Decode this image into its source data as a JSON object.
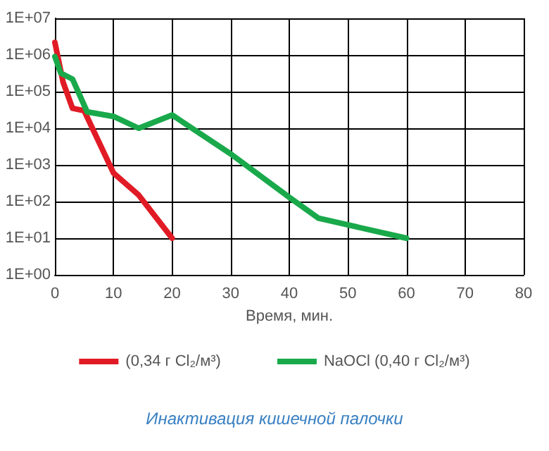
{
  "chart_data": {
    "type": "line",
    "title": "Инактивация кишечной палочки",
    "xlabel": "Время, мин.",
    "series": [
      {
        "name": "(0,34 г Cl₂/м³)",
        "color": "#e11b25",
        "x": [
          0,
          1.4,
          3,
          5,
          10,
          14.3,
          20
        ],
        "values": [
          2200000,
          180000,
          35000,
          30000,
          600,
          150,
          10
        ]
      },
      {
        "name": "NaOCl (0,40 г Cl₂/м³)",
        "color": "#19a94b",
        "x": [
          0,
          1,
          3,
          5.5,
          10,
          14.3,
          20,
          30,
          40,
          45,
          60
        ],
        "values": [
          900000,
          320000,
          220000,
          28000,
          21000,
          10000,
          23000,
          2000,
          130,
          35,
          10
        ]
      }
    ],
    "xlim": [
      0,
      80
    ],
    "xticks": [
      0,
      10,
      20,
      30,
      40,
      50,
      60,
      70,
      80
    ],
    "ylim": [
      1,
      10000000
    ],
    "yticks": [
      {
        "value": 1,
        "label": "1E+00"
      },
      {
        "value": 10,
        "label": "1E+01"
      },
      {
        "value": 100,
        "label": "1E+02"
      },
      {
        "value": 1000,
        "label": "1E+03"
      },
      {
        "value": 10000,
        "label": "1E+04"
      },
      {
        "value": 100000,
        "label": "1E+05"
      },
      {
        "value": 1000000,
        "label": "1E+06"
      },
      {
        "value": 10000000,
        "label": "1E+07"
      }
    ],
    "log": "y",
    "grid": true,
    "legend": "bottom",
    "marker": "none",
    "line_style": "solid"
  }
}
